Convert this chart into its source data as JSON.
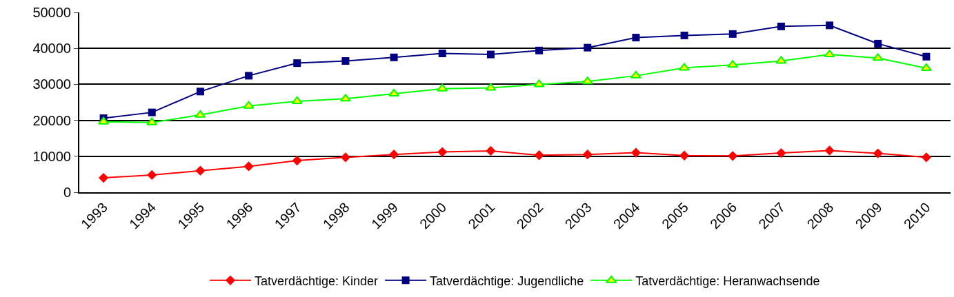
{
  "chart_data": {
    "type": "line",
    "categories": [
      "1993",
      "1994",
      "1995",
      "1996",
      "1997",
      "1998",
      "1999",
      "2000",
      "2001",
      "2002",
      "2003",
      "2004",
      "2005",
      "2006",
      "2007",
      "2008",
      "2009",
      "2010"
    ],
    "series": [
      {
        "name": "Tatverdächtige: Kinder",
        "color": "#ff0000",
        "marker": "diamond",
        "values": [
          4000,
          4800,
          6000,
          7200,
          8800,
          9700,
          10500,
          11200,
          11500,
          10300,
          10500,
          11000,
          10200,
          10100,
          10900,
          11600,
          10800,
          9700
        ]
      },
      {
        "name": "Tatverdächtige: Jugendliche",
        "color": "#000080",
        "marker": "square",
        "values": [
          20600,
          22200,
          28000,
          32400,
          35900,
          36500,
          37500,
          38600,
          38300,
          39400,
          40200,
          43000,
          43600,
          44000,
          46100,
          46400,
          41300,
          37700
        ]
      },
      {
        "name": "Tatverdächtige: Heranwachsende",
        "color": "#00ff00",
        "marker": "triangle",
        "values": [
          19600,
          19400,
          21500,
          24000,
          25300,
          26000,
          27400,
          28800,
          29000,
          30000,
          30800,
          32400,
          34600,
          35400,
          36500,
          38300,
          37300,
          34500
        ]
      }
    ],
    "ylim": [
      0,
      50000
    ],
    "yticks": [
      0,
      10000,
      20000,
      30000,
      40000,
      50000
    ],
    "grid": "y",
    "legend": "bottom"
  }
}
